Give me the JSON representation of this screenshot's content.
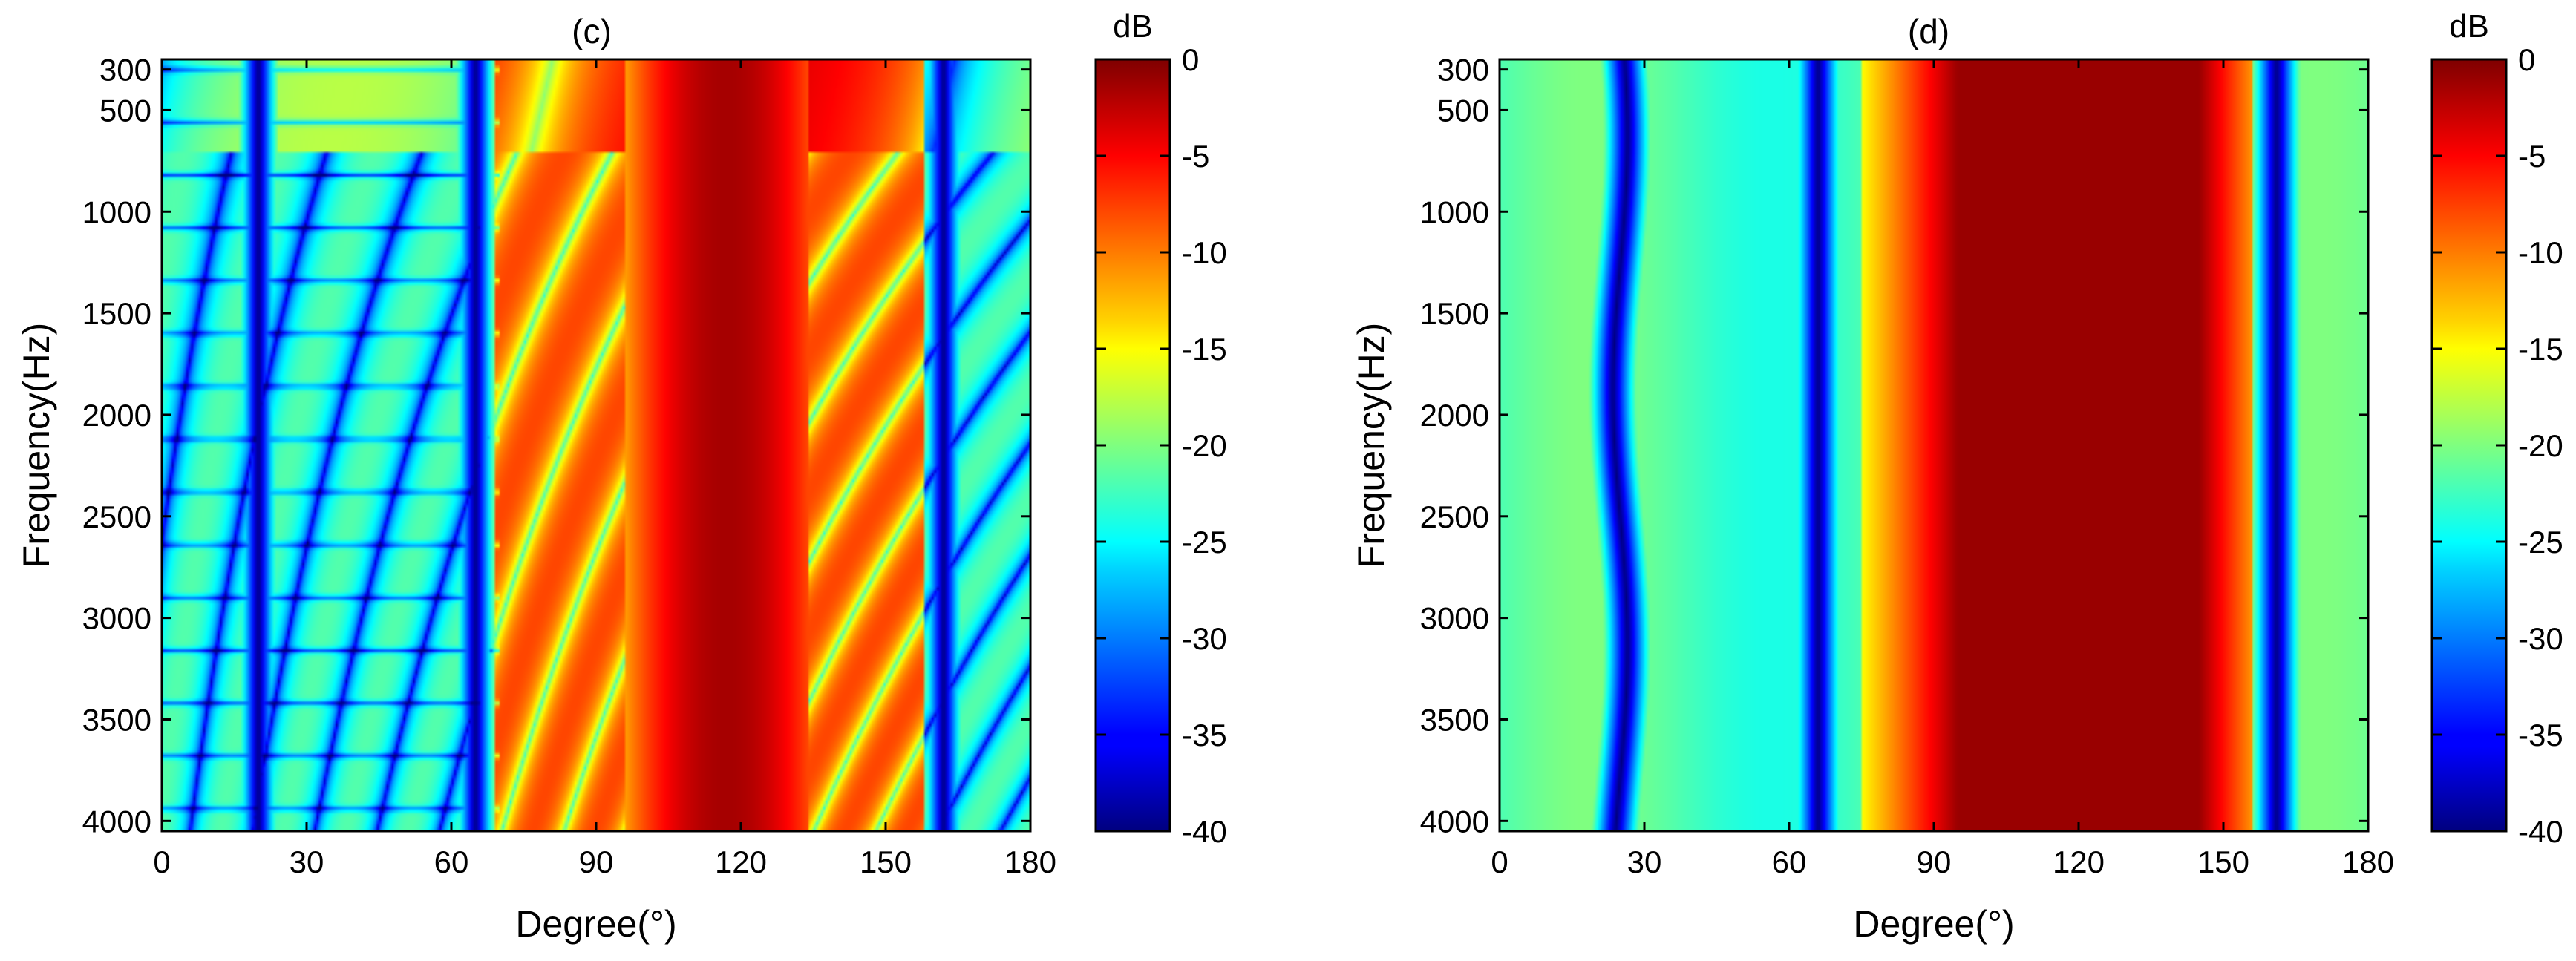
{
  "chart_data": [
    {
      "type": "heatmap",
      "title": "(c)",
      "xlabel": "Degree(°)",
      "ylabel": "Frequency(Hz)",
      "xlim": [
        0,
        180
      ],
      "ylim": [
        250,
        4050
      ],
      "y_reversed": true,
      "xticks": [
        0,
        30,
        60,
        90,
        120,
        150,
        180
      ],
      "yticks": [
        300,
        500,
        1000,
        1500,
        2000,
        2500,
        3000,
        3500,
        4000
      ],
      "colorbar": {
        "label": "dB",
        "range": [
          -40,
          0
        ],
        "ticks": [
          0,
          -5,
          -10,
          -15,
          -20,
          -25,
          -30,
          -35,
          -40
        ],
        "colormap": "jet"
      },
      "features": {
        "main_lobe_deg": [
          105,
          130
        ],
        "null_columns_deg": [
          20,
          65,
          162
        ],
        "approx_level_db": {
          "main_lobe": -1,
          "side_lobes": -18,
          "background": -26,
          "nulls": -40
        }
      }
    },
    {
      "type": "heatmap",
      "title": "(d)",
      "xlabel": "Degree(°)",
      "ylabel": "Frequency(Hz)",
      "xlim": [
        0,
        180
      ],
      "ylim": [
        250,
        4050
      ],
      "y_reversed": true,
      "xticks": [
        0,
        30,
        60,
        90,
        120,
        150,
        180
      ],
      "yticks": [
        300,
        500,
        1000,
        1500,
        2000,
        2500,
        3000,
        3500,
        4000
      ],
      "colorbar": {
        "label": "dB",
        "range": [
          -40,
          0
        ],
        "ticks": [
          0,
          -5,
          -10,
          -15,
          -20,
          -25,
          -30,
          -35,
          -40
        ],
        "colormap": "jet"
      },
      "features": {
        "main_lobe_deg": [
          95,
          145
        ],
        "null_columns_deg": [
          25,
          66,
          161
        ],
        "approx_level_db": {
          "main_lobe": -1,
          "side_lobes": -20,
          "background": -24,
          "nulls": -40
        }
      }
    }
  ]
}
